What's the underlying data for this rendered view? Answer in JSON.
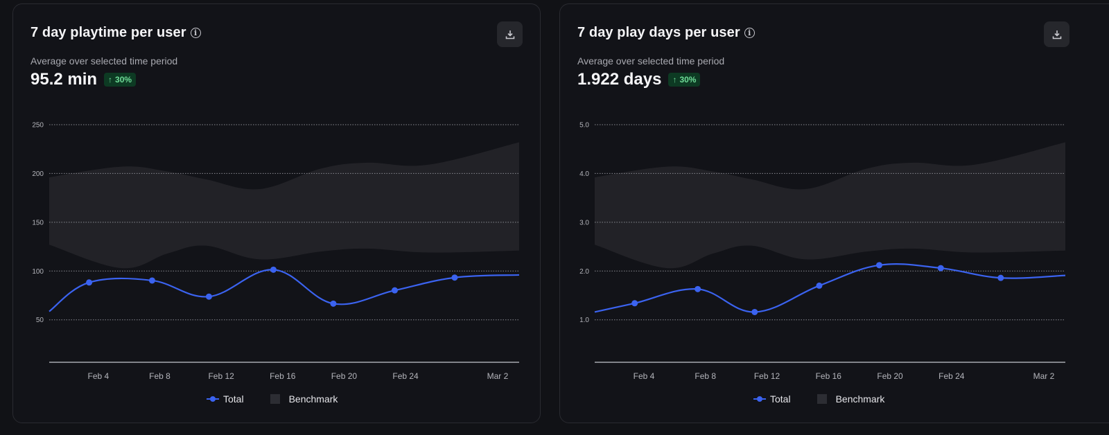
{
  "colors": {
    "background": "#111216",
    "card": "#121318",
    "total_line": "#3b63f0",
    "benchmark_band": "#222227",
    "badge_bg": "#0d3a23",
    "badge_text": "#6fdc98"
  },
  "cards": [
    {
      "title": "7 day playtime per user",
      "info_icon": "info-icon",
      "download_icon": "download-icon",
      "subtitle": "Average over selected time period",
      "metric": "95.2 min",
      "change_arrow": "↑",
      "change": "30%",
      "legend": {
        "total": "Total",
        "benchmark": "Benchmark"
      }
    },
    {
      "title": "7 day play days per user",
      "info_icon": "info-icon",
      "download_icon": "download-icon",
      "subtitle": "Average over selected time period",
      "metric": "1.922 days",
      "change_arrow": "↑",
      "change": "30%",
      "legend": {
        "total": "Total",
        "benchmark": "Benchmark"
      }
    }
  ],
  "chart_data": [
    {
      "type": "line",
      "title": "7 day playtime per user",
      "xlabel": "",
      "ylabel": "",
      "x_tick_labels": [
        "Feb 4",
        "Feb 8",
        "Feb 12",
        "Feb 16",
        "Feb 20",
        "Feb 24",
        "Mar 2"
      ],
      "x_tick_days": [
        4,
        8,
        12,
        16,
        20,
        24,
        30
      ],
      "xlim_days": [
        0.8,
        31.4
      ],
      "y_ticks": [
        50,
        100,
        150,
        200,
        250
      ],
      "y_tick_labels": [
        "50",
        "100",
        "150",
        "200",
        "250"
      ],
      "ylim": [
        6.5,
        250
      ],
      "grid": true,
      "legend_position": "bottom-center",
      "series": [
        {
          "name": "Total",
          "x_days": [
            0.8,
            3.4,
            7.5,
            11.2,
            15.4,
            19.3,
            23.3,
            27.2,
            31.4
          ],
          "values": [
            58.6,
            88.3,
            90.3,
            73.8,
            101.4,
            66.6,
            80.2,
            93.3,
            96
          ],
          "marker_index": [
            1,
            2,
            3,
            4,
            5,
            6,
            7
          ]
        },
        {
          "name": "Benchmark",
          "type": "band",
          "x_days": [
            0.8,
            5.5,
            8.5,
            11.0,
            14.5,
            18.5,
            21.5,
            25.5,
            31.4
          ],
          "upper": [
            196,
            207,
            202,
            194,
            184,
            205,
            211,
            209,
            232
          ],
          "lower": [
            127,
            103,
            118,
            126,
            112,
            120,
            123,
            119,
            121
          ]
        }
      ]
    },
    {
      "type": "line",
      "title": "7 day play days per user",
      "xlabel": "",
      "ylabel": "",
      "x_tick_labels": [
        "Feb 4",
        "Feb 8",
        "Feb 12",
        "Feb 16",
        "Feb 20",
        "Feb 24",
        "Mar 2"
      ],
      "x_tick_days": [
        4,
        8,
        12,
        16,
        20,
        24,
        30
      ],
      "xlim_days": [
        0.8,
        31.4
      ],
      "y_ticks": [
        1.0,
        2.0,
        3.0,
        4.0,
        5.0
      ],
      "y_tick_labels": [
        "1.0",
        "2.0",
        "3.0",
        "4.0",
        "5.0"
      ],
      "ylim": [
        0.13,
        5.0
      ],
      "grid": true,
      "legend_position": "bottom-center",
      "series": [
        {
          "name": "Total",
          "x_days": [
            0.8,
            3.4,
            7.5,
            11.2,
            15.4,
            19.3,
            23.3,
            27.2,
            31.4
          ],
          "values": [
            1.16,
            1.34,
            1.63,
            1.16,
            1.7,
            2.12,
            2.06,
            1.86,
            1.91
          ],
          "marker_index": [
            1,
            2,
            3,
            4,
            5,
            6,
            7
          ]
        },
        {
          "name": "Benchmark",
          "type": "band",
          "x_days": [
            0.8,
            5.5,
            8.5,
            11.0,
            14.5,
            18.5,
            21.5,
            25.5,
            31.4
          ],
          "upper": [
            3.92,
            4.14,
            4.04,
            3.88,
            3.68,
            4.1,
            4.22,
            4.18,
            4.64
          ],
          "lower": [
            2.54,
            2.06,
            2.36,
            2.52,
            2.24,
            2.4,
            2.46,
            2.38,
            2.42
          ]
        }
      ]
    }
  ]
}
